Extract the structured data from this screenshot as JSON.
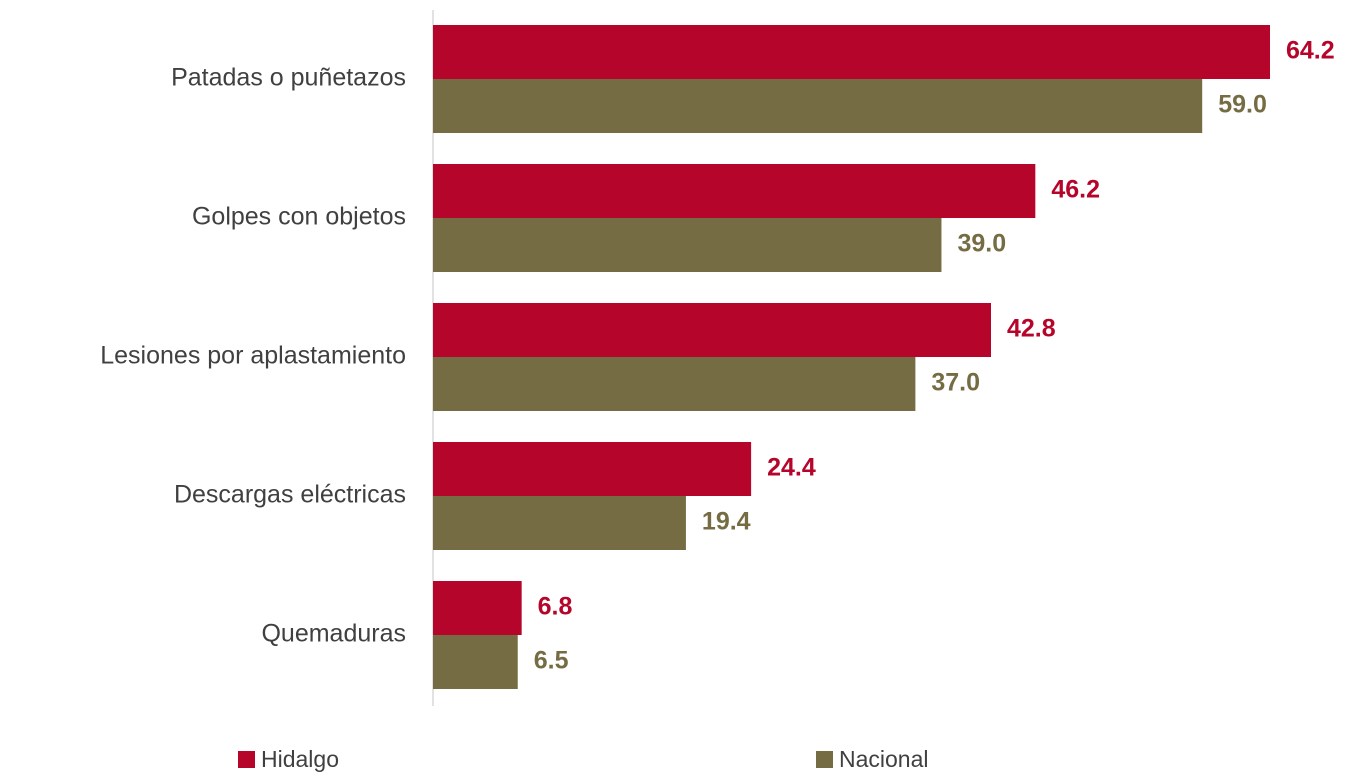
{
  "chart_data": {
    "type": "bar",
    "orientation": "horizontal",
    "categories": [
      "Patadas o puñetazos",
      "Golpes con objetos",
      "Lesiones por aplastamiento",
      "Descargas eléctricas",
      "Quemaduras"
    ],
    "series": [
      {
        "name": "Hidalgo",
        "values": [
          64.2,
          46.2,
          42.8,
          24.4,
          6.8
        ],
        "color": "#b5052b"
      },
      {
        "name": "Nacional",
        "values": [
          59.0,
          39.0,
          37.0,
          19.4,
          6.5
        ],
        "color": "#766c43"
      }
    ],
    "xlim": [
      0,
      70
    ],
    "grid": false,
    "legend": "bottom"
  }
}
